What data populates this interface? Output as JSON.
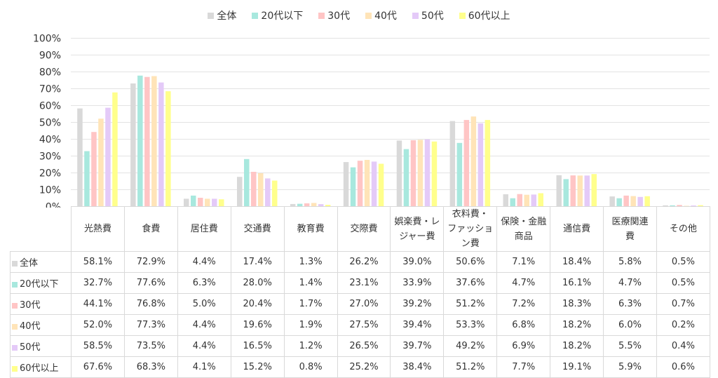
{
  "chart_data": {
    "type": "bar",
    "categories": [
      "光熱費",
      "食費",
      "居住費",
      "交通費",
      "教育費",
      "交際費",
      "娯楽費・レジャー費",
      "衣料費・ファッション費",
      "保険・金融商品",
      "通信費",
      "医療関連費",
      "その他"
    ],
    "category_labels": [
      [
        "光熱費"
      ],
      [
        "食費"
      ],
      [
        "居住費"
      ],
      [
        "交通費"
      ],
      [
        "教育費"
      ],
      [
        "交際費"
      ],
      [
        "娯楽費・レ",
        "ジャー費"
      ],
      [
        "衣料費・",
        "ファッション費"
      ],
      [
        "保険・金融",
        "商品"
      ],
      [
        "通信費"
      ],
      [
        "医療関連",
        "費"
      ],
      [
        "その他"
      ]
    ],
    "series": [
      {
        "name": "全体",
        "color": "#d9d9d9",
        "values": [
          58.1,
          72.9,
          4.4,
          17.4,
          1.3,
          26.2,
          39.0,
          50.6,
          7.1,
          18.4,
          5.8,
          0.5
        ]
      },
      {
        "name": "20代以下",
        "color": "#a8e8de",
        "values": [
          32.7,
          77.6,
          6.3,
          28.0,
          1.4,
          23.1,
          33.9,
          37.6,
          4.7,
          16.1,
          4.7,
          0.5
        ]
      },
      {
        "name": "30代",
        "color": "#ffc5c5",
        "values": [
          44.1,
          76.8,
          5.0,
          20.4,
          1.7,
          27.0,
          39.2,
          51.2,
          7.2,
          18.3,
          6.3,
          0.7
        ]
      },
      {
        "name": "40代",
        "color": "#ffe4b8",
        "values": [
          52.0,
          77.3,
          4.4,
          19.6,
          1.9,
          27.5,
          39.4,
          53.3,
          6.8,
          18.2,
          6.0,
          0.2
        ]
      },
      {
        "name": "50代",
        "color": "#e4caf8",
        "values": [
          58.5,
          73.5,
          4.4,
          16.5,
          1.2,
          26.5,
          39.7,
          49.2,
          6.9,
          18.2,
          5.5,
          0.4
        ]
      },
      {
        "name": "60代以上",
        "color": "#ffff8c",
        "values": [
          67.6,
          68.3,
          4.1,
          15.2,
          0.8,
          25.2,
          38.4,
          51.2,
          7.7,
          19.1,
          5.9,
          0.6
        ]
      }
    ],
    "display_values": [
      [
        "58.1%",
        "72.9%",
        "4.4%",
        "17.4%",
        "1.3%",
        "26.2%",
        "39.0%",
        "50.6%",
        "7.1%",
        "18.4%",
        "5.8%",
        "0.5%"
      ],
      [
        "32.7%",
        "77.6%",
        "6.3%",
        "28.0%",
        "1.4%",
        "23.1%",
        "33.9%",
        "37.6%",
        "4.7%",
        "16.1%",
        "4.7%",
        "0.5%"
      ],
      [
        "44.1%",
        "76.8%",
        "5.0%",
        "20.4%",
        "1.7%",
        "27.0%",
        "39.2%",
        "51.2%",
        "7.2%",
        "18.3%",
        "6.3%",
        "0.7%"
      ],
      [
        "52.0%",
        "77.3%",
        "4.4%",
        "19.6%",
        "1.9%",
        "27.5%",
        "39.4%",
        "53.3%",
        "6.8%",
        "18.2%",
        "6.0%",
        "0.2%"
      ],
      [
        "58.5%",
        "73.5%",
        "4.4%",
        "16.5%",
        "1.2%",
        "26.5%",
        "39.7%",
        "49.2%",
        "6.9%",
        "18.2%",
        "5.5%",
        "0.4%"
      ],
      [
        "67.6%",
        "68.3%",
        "4.1%",
        "15.2%",
        "0.8%",
        "25.2%",
        "38.4%",
        "51.2%",
        "7.7%",
        "19.1%",
        "5.9%",
        "0.6%"
      ]
    ],
    "y_ticks": [
      "0%",
      "10%",
      "20%",
      "30%",
      "40%",
      "50%",
      "60%",
      "70%",
      "80%",
      "90%",
      "100%"
    ],
    "ylim": [
      0,
      100
    ],
    "grid": true,
    "legend_position": "top-center",
    "data_table": true
  }
}
